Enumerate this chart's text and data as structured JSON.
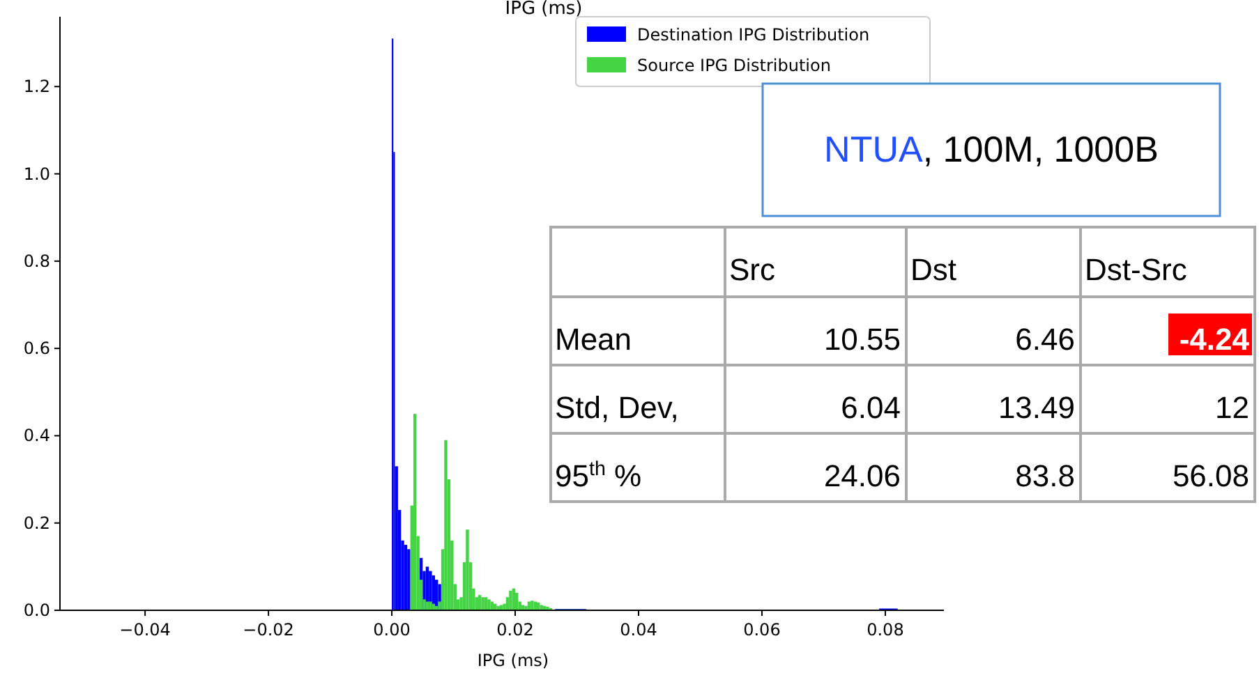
{
  "chart_data": {
    "type": "histogram",
    "title": "IPG (ms)",
    "xlabel": "IPG (ms)",
    "bins": [
      -0.0475,
      0,
      0.00025,
      0.0005,
      0.001,
      0.0015,
      0.002,
      0.0025,
      0.003,
      0.0035,
      0.004,
      0.0045,
      0.005,
      0.0055,
      0.006,
      0.0065,
      0.007,
      0.0075,
      0.008,
      0.0085,
      0.009,
      0.0095,
      0.01,
      0.0105,
      0.011,
      0.0115,
      0.012,
      0.0125,
      0.013,
      0.0135,
      0.014,
      0.0145,
      0.015,
      0.0155,
      0.016,
      0.0165,
      0.017,
      0.0175,
      0.018,
      0.0185,
      0.019,
      0.0195,
      0.02,
      0.0205,
      0.021,
      0.0215,
      0.022,
      0.0225,
      0.023,
      0.0235,
      0.024,
      0.0245,
      0.025,
      0.0255,
      0.026,
      0.0265,
      0.0315,
      0.079,
      0.082
    ],
    "series": [
      {
        "name": "Destination IPG Distribution",
        "color": "#0000ff",
        "values": [
          0,
          1.31,
          1.05,
          0.33,
          0.23,
          0.16,
          0.15,
          0.14,
          null,
          null,
          null,
          0.12,
          0.09,
          0.1,
          0.09,
          0.08,
          0.07,
          0.06,
          0,
          0,
          0,
          0,
          0,
          0,
          0,
          0,
          0,
          0,
          0,
          0,
          0,
          0,
          0,
          0,
          0,
          0,
          0,
          0,
          0,
          0,
          0,
          0,
          0,
          0,
          0,
          0,
          0,
          0,
          0,
          0,
          0,
          0,
          0,
          0,
          0,
          0.003,
          0,
          0.004
        ]
      },
      {
        "name": "Source IPG Distribution",
        "color": "#44d444",
        "values": [
          0.001,
          0,
          0,
          0,
          0,
          0,
          0,
          0,
          0.24,
          0.45,
          0.17,
          0.07,
          0.025,
          0.02,
          0.02,
          0.015,
          0.01,
          0.02,
          0.14,
          0.39,
          0.3,
          0.16,
          0.06,
          0.025,
          0.03,
          0.11,
          0.185,
          0.11,
          0.05,
          0.03,
          0.035,
          0.03,
          0.03,
          0.025,
          0.02,
          0.015,
          0.01,
          0.012,
          0.015,
          0.03,
          0.045,
          0.05,
          0.04,
          0.02,
          0.012,
          0.01,
          0.02,
          0.022,
          0.02,
          0.018,
          0.012,
          0.01,
          0.008,
          0.005,
          null,
          0.002,
          0,
          0
        ]
      }
    ],
    "xlim": [
      -0.0538,
      0.0895
    ],
    "xticks": [
      {
        "value": -0.04,
        "label": "−0.04"
      },
      {
        "value": -0.02,
        "label": "−0.02"
      },
      {
        "value": 0,
        "label": "0.00"
      },
      {
        "value": 0.02,
        "label": "0.02"
      },
      {
        "value": 0.04,
        "label": "0.04"
      },
      {
        "value": 0.06,
        "label": "0.06"
      },
      {
        "value": 0.08,
        "label": "0.08"
      }
    ],
    "ylim": [
      0,
      1.36
    ],
    "yticks": [
      {
        "value": 0,
        "label": "0.0"
      },
      {
        "value": 0.2,
        "label": "0.2"
      },
      {
        "value": 0.4,
        "label": "0.4"
      },
      {
        "value": 0.6,
        "label": "0.6"
      },
      {
        "value": 0.8,
        "label": "0.8"
      },
      {
        "value": 1,
        "label": "1.0"
      },
      {
        "value": 1.2,
        "label": "1.2"
      }
    ],
    "legend": "top right",
    "annotations": [
      "NTUA, 100M, 1000B",
      "Src",
      "Dst",
      "Dst-Src",
      "Mean",
      "10.55",
      "6.46",
      "-4.24",
      "Std, Dev,",
      "6.04",
      "13.49",
      "12",
      "95$^{th}$ %",
      "24.06",
      "83.8",
      "56.08"
    ]
  }
}
